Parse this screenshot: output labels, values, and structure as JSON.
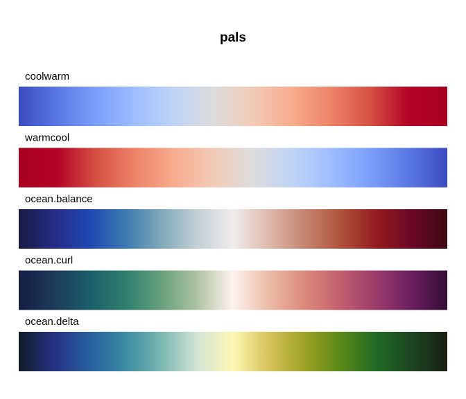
{
  "chart_data": {
    "type": "heatmap",
    "title": "pals",
    "xlabel": "",
    "ylabel": "",
    "palettes": [
      {
        "name": "coolwarm",
        "colors": [
          "#3b4cc0",
          "#5a78e4",
          "#7b9ff9",
          "#9ebeff",
          "#c0d4f5",
          "#dddcdc",
          "#f2cbb7",
          "#f7ac8e",
          "#ee8468",
          "#d65244",
          "#b40426",
          "#a9001f"
        ]
      },
      {
        "name": "warmcool",
        "colors": [
          "#a9001f",
          "#b40426",
          "#d65244",
          "#ee8468",
          "#f7ac8e",
          "#f2cbb7",
          "#dddcdc",
          "#c0d4f5",
          "#9ebeff",
          "#7b9ff9",
          "#5a78e4",
          "#3b4cc0"
        ]
      },
      {
        "name": "ocean.balance",
        "colors": [
          "#181c43",
          "#252c86",
          "#1e49b3",
          "#3d7ab0",
          "#80a9ba",
          "#c2d0d6",
          "#f1ecec",
          "#deb9ab",
          "#c58670",
          "#b0543d",
          "#951b1f",
          "#6b0825",
          "#3c0912"
        ]
      },
      {
        "name": "ocean.curl",
        "colors": [
          "#151d44",
          "#1d3b5a",
          "#1b5e6a",
          "#2f7f6e",
          "#67a07c",
          "#b0c4a4",
          "#fdf2ee",
          "#ebbca6",
          "#dc8a7b",
          "#c25f6e",
          "#9b3c6b",
          "#6a1f5f",
          "#340d35"
        ]
      },
      {
        "name": "ocean.delta",
        "colors": [
          "#111d28",
          "#253184",
          "#2760a0",
          "#3a8ca3",
          "#7bb7b0",
          "#d3e4d6",
          "#fdf7b2",
          "#d7c25a",
          "#9da125",
          "#5b8a17",
          "#216b24",
          "#1c4522",
          "#191f12"
        ]
      }
    ]
  }
}
